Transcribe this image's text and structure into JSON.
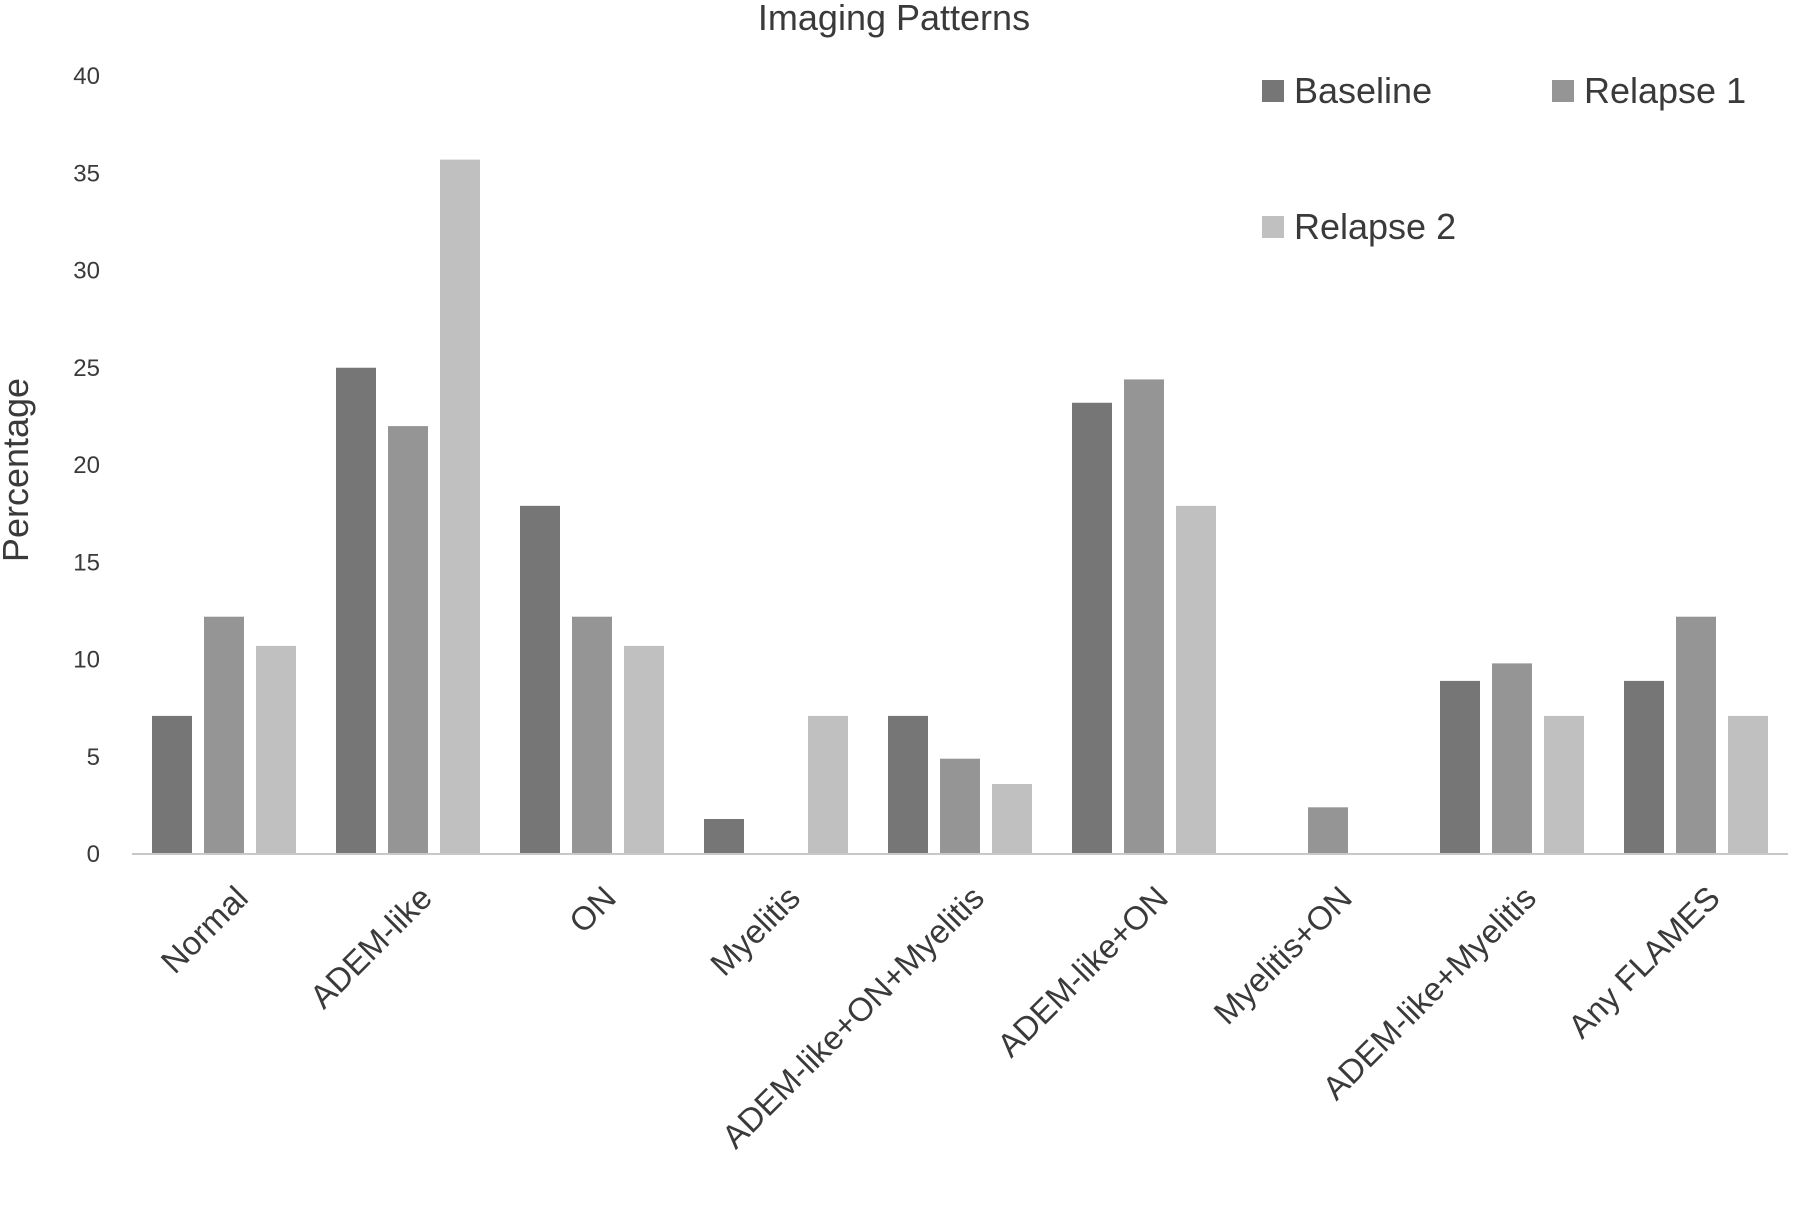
{
  "chart_data": {
    "type": "bar",
    "title": "Imaging Patterns",
    "xlabel": "",
    "ylabel": "Percentage",
    "ylim": [
      0,
      40
    ],
    "yticks": [
      0,
      5,
      10,
      15,
      20,
      25,
      30,
      35,
      40
    ],
    "grid": false,
    "legend_position": "top-right",
    "categories": [
      "Normal",
      "ADEM-like",
      "ON",
      "Myelitis",
      "ADEM-like+ON+Myelitis",
      "ADEM-like+ON",
      "Myelitis+ON",
      "ADEM-like+Myelitis",
      "Any FLAMES"
    ],
    "series": [
      {
        "name": "Baseline",
        "color": "#767676",
        "values": [
          7.1,
          25.0,
          17.9,
          1.8,
          7.1,
          23.2,
          0,
          8.9,
          8.9
        ]
      },
      {
        "name": "Relapse 1",
        "color": "#959595",
        "values": [
          12.2,
          22.0,
          12.2,
          0,
          4.9,
          24.4,
          2.4,
          9.8,
          12.2
        ]
      },
      {
        "name": "Relapse 2",
        "color": "#c0c0c0",
        "values": [
          10.7,
          35.7,
          10.7,
          7.1,
          3.6,
          17.9,
          0,
          7.1,
          7.1
        ]
      }
    ],
    "axis_color": "#c8c8c8"
  }
}
